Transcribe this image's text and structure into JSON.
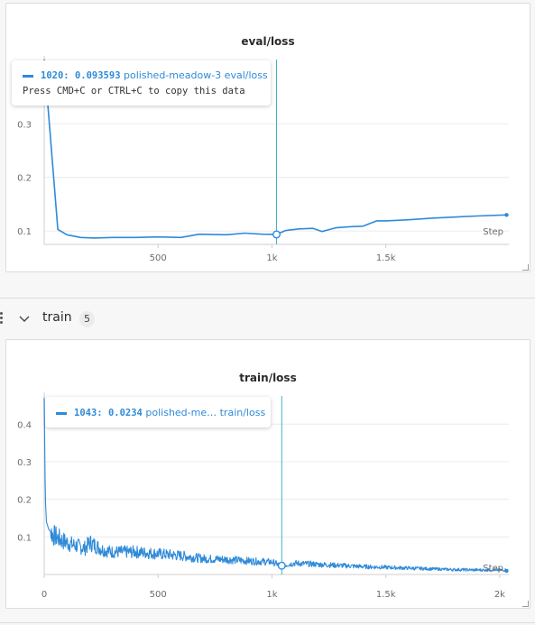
{
  "chart_data": [
    {
      "type": "line",
      "title": "eval/loss",
      "xlabel": "Step",
      "ylabel": "",
      "xlim": [
        0,
        2040
      ],
      "ylim": [
        0.075,
        0.42
      ],
      "x_ticks": [
        {
          "value": 500,
          "label": "500"
        },
        {
          "value": 1000,
          "label": "1k"
        },
        {
          "value": 1500,
          "label": "1.5k"
        }
      ],
      "y_ticks": [
        {
          "value": 0.1,
          "label": "0.1"
        },
        {
          "value": 0.2,
          "label": "0.2"
        },
        {
          "value": 0.3,
          "label": "0.3"
        }
      ],
      "grid": true,
      "color": "#2f8ad8",
      "cursor_step": 1020,
      "series": [
        {
          "name": "polished-meadow-3 eval/loss",
          "x": [
            0,
            60,
            100,
            160,
            220,
            300,
            400,
            500,
            600,
            680,
            800,
            880,
            960,
            1020,
            1060,
            1120,
            1180,
            1220,
            1280,
            1340,
            1400,
            1460,
            1500,
            1600,
            1700,
            1800,
            1900,
            2030
          ],
          "y": [
            0.43,
            0.103,
            0.093,
            0.088,
            0.087,
            0.088,
            0.088,
            0.089,
            0.088,
            0.094,
            0.093,
            0.096,
            0.094,
            0.0936,
            0.101,
            0.104,
            0.105,
            0.099,
            0.106,
            0.108,
            0.109,
            0.119,
            0.119,
            0.121,
            0.124,
            0.126,
            0.128,
            0.13
          ]
        }
      ]
    },
    {
      "type": "line",
      "title": "train/loss",
      "xlabel": "Step",
      "ylabel": "",
      "xlim": [
        0,
        2040
      ],
      "ylim": [
        0,
        0.475
      ],
      "x_ticks": [
        {
          "value": 0,
          "label": "0"
        },
        {
          "value": 500,
          "label": "500"
        },
        {
          "value": 1000,
          "label": "1k"
        },
        {
          "value": 1500,
          "label": "1.5k"
        },
        {
          "value": 2000,
          "label": "2k"
        }
      ],
      "y_ticks": [
        {
          "value": 0.1,
          "label": "0.1"
        },
        {
          "value": 0.2,
          "label": "0.2"
        },
        {
          "value": 0.3,
          "label": "0.3"
        },
        {
          "value": 0.4,
          "label": "0.4"
        }
      ],
      "grid": true,
      "color": "#2f8ad8",
      "cursor_step": 1043,
      "series": [
        {
          "name": "polished-me… train/loss",
          "x": [
            0,
            5,
            10,
            20,
            40,
            80,
            120,
            180,
            200,
            260,
            300,
            400,
            500,
            600,
            700,
            800,
            900,
            1000,
            1043,
            1100,
            1200,
            1300,
            1400,
            1500,
            1600,
            1700,
            1800,
            1900,
            2030
          ],
          "y": [
            0.47,
            0.2,
            0.14,
            0.12,
            0.105,
            0.09,
            0.08,
            0.07,
            0.085,
            0.065,
            0.06,
            0.06,
            0.055,
            0.05,
            0.042,
            0.04,
            0.036,
            0.033,
            0.0234,
            0.03,
            0.027,
            0.024,
            0.021,
            0.019,
            0.017,
            0.015,
            0.013,
            0.012,
            0.012
          ]
        }
      ]
    }
  ],
  "tooltips": {
    "eval": {
      "step": "1020",
      "value": "0.093593",
      "run": "polished-meadow-3 eval/loss",
      "hint": "Press CMD+C or CTRL+C to copy this data"
    },
    "train": {
      "step": "1043",
      "value": "0.0234",
      "run": "polished-me… train/loss"
    }
  },
  "section": {
    "name": "train",
    "count": "5"
  }
}
